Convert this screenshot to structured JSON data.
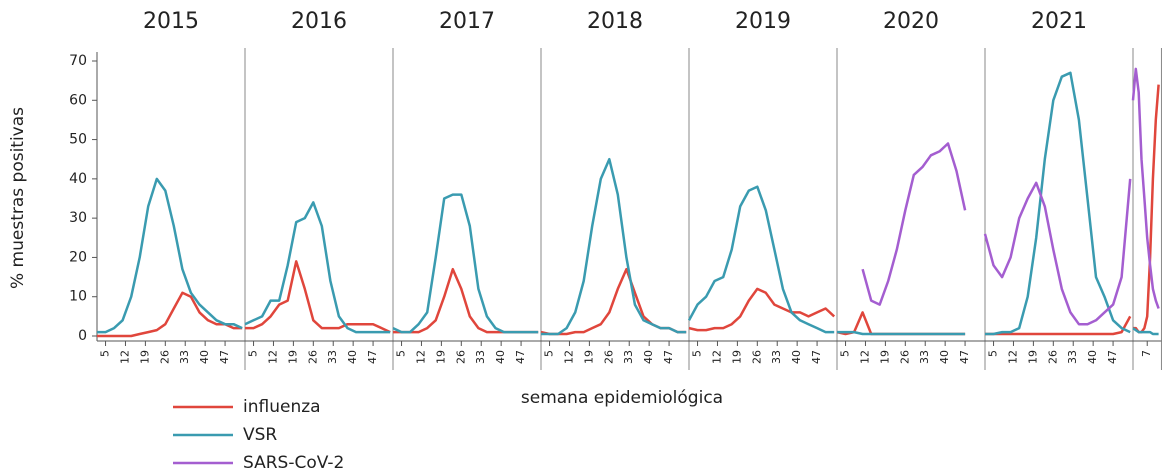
{
  "chart_data": {
    "type": "line",
    "ylabel": "% muestras positivas",
    "xlabel": "semana epidemiológica",
    "ylim": [
      0,
      70
    ],
    "yticks": [
      0,
      10,
      20,
      30,
      40,
      50,
      60,
      70
    ],
    "series": [
      {
        "name": "influenza",
        "color": "#e0463c"
      },
      {
        "name": "VSR",
        "color": "#3a9bb0"
      },
      {
        "name": "SARS-CoV-2",
        "color": "#a45ed0"
      }
    ],
    "panels": [
      {
        "title": "2015",
        "xlim": [
          2,
          54
        ],
        "xticks": [
          5,
          12,
          19,
          26,
          33,
          40,
          47
        ],
        "x": [
          2,
          5,
          8,
          11,
          14,
          17,
          20,
          23,
          26,
          29,
          32,
          35,
          38,
          41,
          44,
          47,
          50,
          53
        ],
        "lines": [
          [
            0,
            0,
            0,
            0,
            0,
            0.5,
            1,
            1.5,
            3,
            7,
            11,
            10,
            6,
            4,
            3,
            3,
            2,
            2
          ],
          [
            1,
            1,
            2,
            4,
            10,
            20,
            33,
            40,
            37,
            28,
            17,
            11,
            8,
            6,
            4,
            3,
            3,
            2
          ],
          [
            null,
            null,
            null,
            null,
            null,
            null,
            null,
            null,
            null,
            null,
            null,
            null,
            null,
            null,
            null,
            null,
            null,
            null
          ]
        ]
      },
      {
        "title": "2016",
        "xlim": [
          2,
          54
        ],
        "xticks": [
          5,
          12,
          19,
          26,
          33,
          40,
          47
        ],
        "x": [
          2,
          5,
          8,
          11,
          14,
          17,
          20,
          23,
          26,
          29,
          32,
          35,
          38,
          41,
          44,
          47,
          50,
          53
        ],
        "lines": [
          [
            2,
            2,
            3,
            5,
            8,
            9,
            19,
            12,
            4,
            2,
            2,
            2,
            3,
            3,
            3,
            3,
            2,
            1
          ],
          [
            3,
            4,
            5,
            9,
            9,
            18,
            29,
            30,
            34,
            28,
            14,
            5,
            2,
            1,
            1,
            1,
            1,
            1
          ],
          [
            null,
            null,
            null,
            null,
            null,
            null,
            null,
            null,
            null,
            null,
            null,
            null,
            null,
            null,
            null,
            null,
            null,
            null
          ]
        ]
      },
      {
        "title": "2017",
        "xlim": [
          2,
          54
        ],
        "xticks": [
          5,
          12,
          19,
          26,
          33,
          40,
          47
        ],
        "x": [
          2,
          5,
          8,
          11,
          14,
          17,
          20,
          23,
          26,
          29,
          32,
          35,
          38,
          41,
          44,
          47,
          50,
          53
        ],
        "lines": [
          [
            1,
            1,
            1,
            1,
            2,
            4,
            10,
            17,
            12,
            5,
            2,
            1,
            1,
            1,
            1,
            1,
            1,
            1
          ],
          [
            2,
            1,
            1,
            3,
            6,
            20,
            35,
            36,
            36,
            28,
            12,
            5,
            2,
            1,
            1,
            1,
            1,
            1
          ],
          [
            null,
            null,
            null,
            null,
            null,
            null,
            null,
            null,
            null,
            null,
            null,
            null,
            null,
            null,
            null,
            null,
            null,
            null
          ]
        ]
      },
      {
        "title": "2018",
        "xlim": [
          2,
          54
        ],
        "xticks": [
          5,
          12,
          19,
          26,
          33,
          40,
          47
        ],
        "x": [
          2,
          5,
          8,
          11,
          14,
          17,
          20,
          23,
          26,
          29,
          32,
          35,
          38,
          41,
          44,
          47,
          50,
          53
        ],
        "lines": [
          [
            1,
            0.5,
            0.5,
            0.5,
            1,
            1,
            2,
            3,
            6,
            12,
            17,
            11,
            5,
            3,
            2,
            2,
            1,
            1
          ],
          [
            0.5,
            0.5,
            0.5,
            2,
            6,
            14,
            28,
            40,
            45,
            36,
            20,
            8,
            4,
            3,
            2,
            2,
            1,
            1
          ],
          [
            null,
            null,
            null,
            null,
            null,
            null,
            null,
            null,
            null,
            null,
            null,
            null,
            null,
            null,
            null,
            null,
            null,
            null
          ]
        ]
      },
      {
        "title": "2019",
        "xlim": [
          2,
          54
        ],
        "xticks": [
          5,
          12,
          19,
          26,
          33,
          40,
          47
        ],
        "x": [
          2,
          5,
          8,
          11,
          14,
          17,
          20,
          23,
          26,
          29,
          32,
          35,
          38,
          41,
          44,
          47,
          50,
          53
        ],
        "lines": [
          [
            2,
            1.5,
            1.5,
            2,
            2,
            3,
            5,
            9,
            12,
            11,
            8,
            7,
            6,
            6,
            5,
            6,
            7,
            5
          ],
          [
            4,
            8,
            10,
            14,
            15,
            22,
            33,
            37,
            38,
            32,
            22,
            12,
            6,
            4,
            3,
            2,
            1,
            1
          ],
          [
            null,
            null,
            null,
            null,
            null,
            null,
            null,
            null,
            null,
            null,
            null,
            null,
            null,
            null,
            null,
            null,
            null,
            null
          ]
        ]
      },
      {
        "title": "2020",
        "xlim": [
          2,
          54
        ],
        "xticks": [
          5,
          12,
          19,
          26,
          33,
          40,
          47
        ],
        "x": [
          2,
          5,
          8,
          11,
          14,
          17,
          20,
          23,
          26,
          29,
          32,
          35,
          38,
          41,
          44,
          47,
          50,
          53
        ],
        "lines": [
          [
            1,
            0.5,
            1,
            6,
            0.5,
            0.5,
            0.5,
            0.5,
            0.5,
            0.5,
            0.5,
            0.5,
            0.5,
            0.5,
            0.5,
            0.5,
            null,
            null
          ],
          [
            1,
            1,
            1,
            0.5,
            0.5,
            0.5,
            0.5,
            0.5,
            0.5,
            0.5,
            0.5,
            0.5,
            0.5,
            0.5,
            0.5,
            0.5,
            null,
            null
          ],
          [
            null,
            null,
            null,
            17,
            9,
            8,
            14,
            22,
            32,
            41,
            43,
            46,
            47,
            49,
            42,
            32,
            null,
            null
          ]
        ]
      },
      {
        "title": "2021",
        "xlim": [
          2,
          54
        ],
        "xticks": [
          5,
          12,
          19,
          26,
          33,
          40,
          47
        ],
        "x": [
          2,
          5,
          8,
          11,
          14,
          17,
          20,
          23,
          26,
          29,
          32,
          35,
          38,
          41,
          44,
          47,
          50,
          53
        ],
        "lines": [
          [
            0.5,
            0.5,
            0.5,
            0.5,
            0.5,
            0.5,
            0.5,
            0.5,
            0.5,
            0.5,
            0.5,
            0.5,
            0.5,
            0.5,
            0.5,
            0.5,
            1,
            5
          ],
          [
            0.5,
            0.5,
            1,
            1,
            2,
            10,
            25,
            45,
            60,
            66,
            67,
            55,
            35,
            15,
            10,
            4,
            2,
            1
          ],
          [
            26,
            18,
            15,
            20,
            30,
            35,
            39,
            33,
            22,
            12,
            6,
            3,
            3,
            4,
            6,
            8,
            15,
            40
          ]
        ]
      },
      {
        "title": "",
        "xlim": [
          2,
          12
        ],
        "xticks": [
          7
        ],
        "x": [
          2,
          3,
          4,
          5,
          6,
          7,
          8,
          9,
          10,
          11
        ],
        "lines": [
          [
            2,
            2,
            1,
            1,
            2,
            5,
            20,
            40,
            55,
            64
          ],
          [
            2,
            1.5,
            1,
            1,
            1,
            1,
            1,
            0.5,
            0.5,
            0.5
          ],
          [
            60,
            68,
            62,
            45,
            35,
            25,
            18,
            12,
            9,
            7
          ]
        ]
      }
    ]
  }
}
